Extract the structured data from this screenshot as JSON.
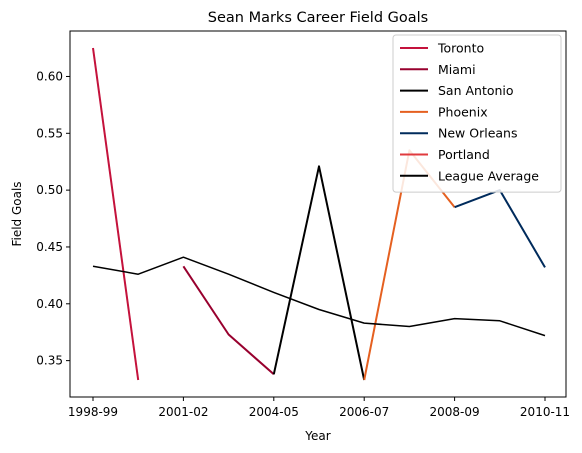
{
  "chart_data": {
    "type": "line",
    "title": "Sean Marks Career Field Goals",
    "xlabel": "Year",
    "ylabel": "Field Goals",
    "x": [
      "1998-99",
      "1999-00",
      "2001-02",
      "2002-03",
      "2004-05",
      "2005-06",
      "2006-07",
      "2007-08",
      "2008-09",
      "2009-10",
      "2010-11"
    ],
    "xticks": [
      "1998-99",
      "2001-02",
      "2004-05",
      "2006-07",
      "2008-09",
      "2010-11"
    ],
    "yticks": [
      "0.35",
      "0.40",
      "0.45",
      "0.50",
      "0.55",
      "0.60"
    ],
    "ylim": [
      0.318,
      0.64
    ],
    "legend_position": "top-right",
    "grid": false,
    "series": [
      {
        "name": "Toronto",
        "color": "#C4123C",
        "width": 2,
        "x": [
          "1998-99",
          "1999-00"
        ],
        "values": [
          0.625,
          0.333
        ]
      },
      {
        "name": "Miami",
        "color": "#98002E",
        "width": 2,
        "x": [
          "2001-02",
          "2002-03",
          "2004-05"
        ],
        "values": [
          0.433,
          0.373,
          0.338
        ]
      },
      {
        "name": "San Antonio",
        "color": "#000000",
        "width": 2,
        "x": [
          "2004-05",
          "2005-06",
          "2006-07"
        ],
        "values": [
          0.338,
          0.521,
          0.333
        ]
      },
      {
        "name": "Phoenix",
        "color": "#E56020",
        "width": 2,
        "x": [
          "2006-07",
          "2007-08",
          "2008-09"
        ],
        "values": [
          0.333,
          0.535,
          0.485
        ]
      },
      {
        "name": "New Orleans",
        "color": "#002B5C",
        "width": 2,
        "x": [
          "2008-09",
          "2009-10",
          "2010-11"
        ],
        "values": [
          0.485,
          0.5,
          0.432
        ]
      },
      {
        "name": "Portland",
        "color": "#E03A3E",
        "width": 2,
        "x": [],
        "values": []
      },
      {
        "name": "League Average",
        "color": "#000000",
        "width": 1.5,
        "x": [
          "1998-99",
          "1999-00",
          "2001-02",
          "2002-03",
          "2004-05",
          "2005-06",
          "2006-07",
          "2007-08",
          "2008-09",
          "2009-10",
          "2010-11"
        ],
        "values": [
          0.433,
          0.426,
          0.441,
          0.426,
          0.41,
          0.395,
          0.383,
          0.38,
          0.387,
          0.385,
          0.372
        ]
      }
    ]
  }
}
